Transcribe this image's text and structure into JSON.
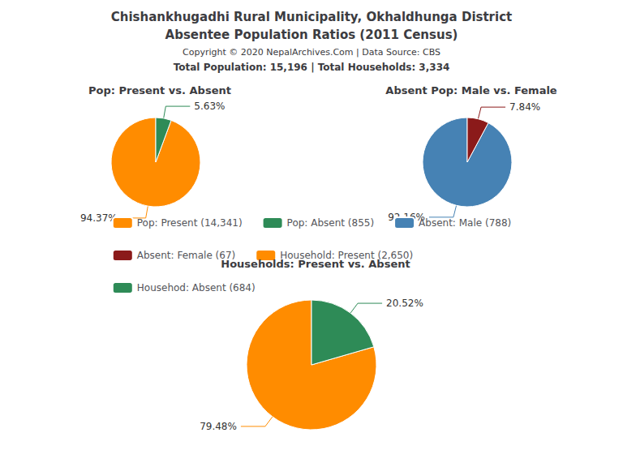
{
  "title": "Chishankhugadhi Rural Municipality, Okhaldhunga District",
  "subtitle": "Absentee Population Ratios (2011 Census)",
  "annotations": [
    "Copyright © 2020 NepalArchives.Com | Data Source: CBS",
    "Total Population: 15,196 | Total Households: 3,334"
  ],
  "legend": "center",
  "chart_data": [
    {
      "type": "pie",
      "title": "Pop: Present vs. Absent",
      "categories": [
        "Pop: Present (14,341)",
        "Pop: Absent (855)"
      ],
      "values": [
        94.37,
        5.63
      ],
      "value_labels": [
        "94.37%",
        "5.63%"
      ],
      "colors": [
        "#FF8C00",
        "#2E8B57"
      ],
      "data_labels": true
    },
    {
      "type": "pie",
      "title": "Absent Pop: Male vs. Female",
      "categories": [
        "Absent: Male (788)",
        "Absent: Female (67)"
      ],
      "values": [
        92.16,
        7.84
      ],
      "value_labels": [
        "92.16%",
        "7.84%"
      ],
      "colors": [
        "#4682B4",
        "#8B1A1A"
      ],
      "data_labels": true
    },
    {
      "type": "pie",
      "title": "Households: Present vs. Absent",
      "categories": [
        "Household: Present (2,650)",
        "Househod: Absent (684)"
      ],
      "values": [
        79.48,
        20.52
      ],
      "value_labels": [
        "79.48%",
        "20.52%"
      ],
      "colors": [
        "#FF8C00",
        "#2E8B57"
      ],
      "data_labels": true
    }
  ]
}
